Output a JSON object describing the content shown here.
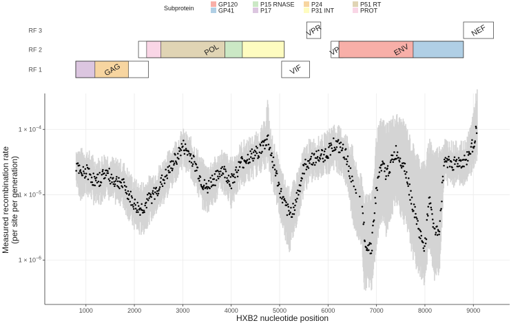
{
  "legend": {
    "title": "Subprotein",
    "items": [
      {
        "label": "GP120",
        "color": "#F8AFA8"
      },
      {
        "label": "GP41",
        "color": "#B0CFE5"
      },
      {
        "label": "P15 RNASE",
        "color": "#CBE8C5"
      },
      {
        "label": "P17",
        "color": "#DCC6E0"
      },
      {
        "label": "P24",
        "color": "#F7D5A0"
      },
      {
        "label": "P31 INT",
        "color": "#FEFCC0"
      },
      {
        "label": "P51 RT",
        "color": "#E0D4B4"
      },
      {
        "label": "PROT",
        "color": "#F9D6E6"
      }
    ]
  },
  "chart_data": [
    {
      "type": "gene-map",
      "rows": [
        "RF 3",
        "RF 2",
        "RF 1"
      ],
      "genes": [
        {
          "label": "GAG",
          "frame": "RF 1",
          "start": 790,
          "end": 2292,
          "subproteins": [
            {
              "name": "P17",
              "start": 790,
              "end": 1186,
              "color": "#DCC6E0"
            },
            {
              "name": "P24",
              "start": 1186,
              "end": 1879,
              "color": "#F7D5A0"
            }
          ]
        },
        {
          "label": "POL",
          "frame": "RF 2",
          "start": 2085,
          "end": 5096,
          "subproteins": [
            {
              "name": "PROT",
              "start": 2253,
              "end": 2550,
              "color": "#F9D6E6"
            },
            {
              "name": "P51 RT",
              "start": 2550,
              "end": 3870,
              "color": "#E0D4B4"
            },
            {
              "name": "P15 RNASE",
              "start": 3870,
              "end": 4230,
              "color": "#CBE8C5"
            },
            {
              "name": "P31 INT",
              "start": 4230,
              "end": 5096,
              "color": "#FEFCC0"
            }
          ]
        },
        {
          "label": "VIF",
          "frame": "RF 1",
          "start": 5041,
          "end": 5619,
          "subproteins": []
        },
        {
          "label": "VPR",
          "frame": "RF 3",
          "start": 5559,
          "end": 5850,
          "subproteins": []
        },
        {
          "label": "VPU",
          "frame": "RF 2",
          "start": 6062,
          "end": 6310,
          "subproteins": []
        },
        {
          "label": "ENV",
          "frame": "RF 2",
          "start": 6225,
          "end": 8795,
          "subproteins": [
            {
              "name": "GP120",
              "start": 6225,
              "end": 7758,
              "color": "#F8AFA8"
            },
            {
              "name": "GP41",
              "start": 7758,
              "end": 8795,
              "color": "#B0CFE5"
            }
          ]
        },
        {
          "label": "NEF",
          "frame": "RF 3",
          "start": 8797,
          "end": 9417,
          "subproteins": []
        }
      ]
    },
    {
      "type": "scatter",
      "xlabel": "HXB2 nucleotide position",
      "ylabel_lines": [
        "Measured recombination rate",
        "(per site per generation)"
      ],
      "xlim": [
        150,
        9750
      ],
      "xticks": [
        1000,
        2000,
        3000,
        4000,
        5000,
        6000,
        7000,
        8000,
        9000
      ],
      "ylim_log10": [
        -6.68,
        -3.45
      ],
      "yticks": [
        {
          "value": 1e-06,
          "mantissa": "1",
          "exponent": "−6"
        },
        {
          "value": 1e-05,
          "mantissa": "1",
          "exponent": "−5"
        },
        {
          "value": 0.0001,
          "mantissa": "1",
          "exponent": "−4"
        }
      ],
      "grid": true,
      "point_color": "#000000",
      "band_color": "#d4d4d4",
      "trend": [
        [
          800,
          2.8e-05
        ],
        [
          900,
          2e-05
        ],
        [
          1000,
          2.3e-05
        ],
        [
          1100,
          2e-05
        ],
        [
          1200,
          1.5e-05
        ],
        [
          1300,
          1.8e-05
        ],
        [
          1400,
          2.2e-05
        ],
        [
          1500,
          1.9e-05
        ],
        [
          1600,
          1.6e-05
        ],
        [
          1700,
          1.6e-05
        ],
        [
          1800,
          1.3e-05
        ],
        [
          1900,
          9.5e-06
        ],
        [
          2000,
          7e-06
        ],
        [
          2100,
          6e-06
        ],
        [
          2200,
          6.5e-06
        ],
        [
          2300,
          8.5e-06
        ],
        [
          2400,
          1e-05
        ],
        [
          2500,
          1.3e-05
        ],
        [
          2600,
          1.7e-05
        ],
        [
          2700,
          2.2e-05
        ],
        [
          2800,
          3e-05
        ],
        [
          2900,
          4e-05
        ],
        [
          3000,
          5.5e-05
        ],
        [
          3100,
          4.5e-05
        ],
        [
          3200,
          3.5e-05
        ],
        [
          3300,
          2.4e-05
        ],
        [
          3400,
          1.5e-05
        ],
        [
          3500,
          1.2e-05
        ],
        [
          3600,
          1.7e-05
        ],
        [
          3700,
          1.8e-05
        ],
        [
          3800,
          2.5e-05
        ],
        [
          3900,
          2e-05
        ],
        [
          4000,
          1.6e-05
        ],
        [
          4100,
          2.2e-05
        ],
        [
          4200,
          3e-05
        ],
        [
          4300,
          3.5e-05
        ],
        [
          4400,
          3.8e-05
        ],
        [
          4500,
          4.2e-05
        ],
        [
          4600,
          5e-05
        ],
        [
          4700,
          6e-05
        ],
        [
          4750,
          7.5e-05
        ],
        [
          4800,
          5e-05
        ],
        [
          4900,
          2.5e-05
        ],
        [
          5000,
          1.2e-05
        ],
        [
          5100,
          7e-06
        ],
        [
          5200,
          5e-06
        ],
        [
          5300,
          6.5e-06
        ],
        [
          5400,
          1.2e-05
        ],
        [
          5500,
          2.5e-05
        ],
        [
          5600,
          3.3e-05
        ],
        [
          5700,
          3.6e-05
        ],
        [
          5800,
          3.8e-05
        ],
        [
          5900,
          4e-05
        ],
        [
          6000,
          4.5e-05
        ],
        [
          6100,
          6e-05
        ],
        [
          6200,
          5.5e-05
        ],
        [
          6300,
          4.8e-05
        ],
        [
          6400,
          3.5e-05
        ],
        [
          6500,
          1.5e-05
        ],
        [
          6600,
          8e-06
        ],
        [
          6700,
          7e-06
        ],
        [
          6750,
          2.5e-06
        ],
        [
          6800,
          1.6e-06
        ],
        [
          6900,
          1.6e-06
        ],
        [
          6950,
          5e-06
        ],
        [
          7000,
          1.2e-05
        ],
        [
          7100,
          3e-05
        ],
        [
          7200,
          2e-05
        ],
        [
          7300,
          3e-05
        ],
        [
          7400,
          4.5e-05
        ],
        [
          7500,
          3.5e-05
        ],
        [
          7600,
          2.5e-05
        ],
        [
          7700,
          1e-05
        ],
        [
          7800,
          5e-06
        ],
        [
          7900,
          2.4e-06
        ],
        [
          8000,
          1.6e-06
        ],
        [
          8100,
          1e-05
        ],
        [
          8200,
          2.5e-06
        ],
        [
          8300,
          3e-06
        ],
        [
          8400,
          3.5e-05
        ],
        [
          8500,
          3.2e-05
        ],
        [
          8600,
          3e-05
        ],
        [
          8700,
          3.2e-05
        ],
        [
          8800,
          3.1e-05
        ],
        [
          8900,
          4e-05
        ],
        [
          9000,
          6e-05
        ],
        [
          9080,
          0.00012
        ]
      ],
      "band": [
        [
          800,
          4.5e-05,
          1.6e-05
        ],
        [
          900,
          4e-05,
          1e-05
        ],
        [
          1000,
          4e-05,
          1.2e-05
        ],
        [
          1100,
          3.5e-05,
          1.1e-05
        ],
        [
          1200,
          2.8e-05,
          8e-06
        ],
        [
          1300,
          3e-05,
          9e-06
        ],
        [
          1400,
          3.6e-05,
          1.2e-05
        ],
        [
          1500,
          3.2e-05,
          1e-05
        ],
        [
          1600,
          2.8e-05,
          9e-06
        ],
        [
          1700,
          2.8e-05,
          9e-06
        ],
        [
          1800,
          2.4e-05,
          7e-06
        ],
        [
          1900,
          1.8e-05,
          5e-06
        ],
        [
          2000,
          1.4e-05,
          3.5e-06
        ],
        [
          2100,
          1.2e-05,
          3e-06
        ],
        [
          2200,
          1.3e-05,
          3.2e-06
        ],
        [
          2300,
          1.5e-05,
          4.5e-06
        ],
        [
          2400,
          1.8e-05,
          5.5e-06
        ],
        [
          2500,
          2.2e-05,
          7e-06
        ],
        [
          2600,
          2.8e-05,
          9e-06
        ],
        [
          2700,
          3.6e-05,
          1.2e-05
        ],
        [
          2800,
          4.8e-05,
          1.7e-05
        ],
        [
          2900,
          6.2e-05,
          2.4e-05
        ],
        [
          3000,
          8e-05,
          3.4e-05
        ],
        [
          3100,
          6.8e-05,
          2.7e-05
        ],
        [
          3200,
          5.5e-05,
          2e-05
        ],
        [
          3300,
          4e-05,
          1.3e-05
        ],
        [
          3400,
          2.8e-05,
          8e-06
        ],
        [
          3500,
          2.2e-05,
          6.5e-06
        ],
        [
          3600,
          2.8e-05,
          9e-06
        ],
        [
          3700,
          3e-05,
          1e-05
        ],
        [
          3800,
          4e-05,
          1.4e-05
        ],
        [
          3900,
          3.4e-05,
          1.1e-05
        ],
        [
          4000,
          2.8e-05,
          8e-06
        ],
        [
          4100,
          3.6e-05,
          1.2e-05
        ],
        [
          4200,
          5e-05,
          1.6e-05
        ],
        [
          4300,
          5.6e-05,
          1.9e-05
        ],
        [
          4400,
          6e-05,
          2.1e-05
        ],
        [
          4500,
          6.8e-05,
          2.4e-05
        ],
        [
          4600,
          8e-05,
          2.8e-05
        ],
        [
          4700,
          0.00011,
          3.2e-05
        ],
        [
          4750,
          0.00025,
          3.5e-05
        ],
        [
          4800,
          9e-05,
          2.4e-05
        ],
        [
          4900,
          4.5e-05,
          1.2e-05
        ],
        [
          5000,
          2.4e-05,
          5.5e-06
        ],
        [
          5100,
          1.4e-05,
          3e-06
        ],
        [
          5200,
          1e-05,
          1.6e-06
        ],
        [
          5300,
          1.3e-05,
          3e-06
        ],
        [
          5400,
          2.2e-05,
          6e-06
        ],
        [
          5500,
          4.2e-05,
          1.3e-05
        ],
        [
          5600,
          5.4e-05,
          1.8e-05
        ],
        [
          5700,
          5.8e-05,
          2e-05
        ],
        [
          5800,
          6e-05,
          2.2e-05
        ],
        [
          5900,
          6.5e-05,
          2.4e-05
        ],
        [
          6000,
          7.5e-05,
          2.6e-05
        ],
        [
          6100,
          0.0001,
          3.2e-05
        ],
        [
          6200,
          9e-05,
          2.8e-05
        ],
        [
          6300,
          8e-05,
          2.4e-05
        ],
        [
          6400,
          6.5e-05,
          1.4e-05
        ],
        [
          6500,
          4.5e-05,
          5e-06
        ],
        [
          6600,
          2e-05,
          2.5e-06
        ],
        [
          6700,
          1.5e-05,
          2e-06
        ],
        [
          6750,
          8e-06,
          4e-07
        ],
        [
          6800,
          1e-05,
          5e-07
        ],
        [
          6900,
          8e-06,
          4.5e-07
        ],
        [
          6950,
          2e-05,
          1e-06
        ],
        [
          7000,
          7e-05,
          2e-06
        ],
        [
          7100,
          0.00012,
          5e-06
        ],
        [
          7200,
          0.0001,
          3e-06
        ],
        [
          7300,
          0.00012,
          5e-06
        ],
        [
          7400,
          0.00014,
          1e-05
        ],
        [
          7500,
          0.00012,
          6e-06
        ],
        [
          7600,
          0.0001,
          4e-06
        ],
        [
          7700,
          6e-05,
          2e-06
        ],
        [
          7800,
          4e-05,
          1e-06
        ],
        [
          7900,
          3e-05,
          7e-07
        ],
        [
          8000,
          2.5e-05,
          5e-07
        ],
        [
          8100,
          6e-05,
          2e-06
        ],
        [
          8200,
          4e-05,
          6e-07
        ],
        [
          8300,
          4.5e-05,
          8e-07
        ],
        [
          8400,
          6e-05,
          1.8e-05
        ],
        [
          8500,
          5.5e-05,
          1.8e-05
        ],
        [
          8600,
          5e-05,
          1.7e-05
        ],
        [
          8700,
          5.2e-05,
          1.8e-05
        ],
        [
          8800,
          5e-05,
          1.8e-05
        ],
        [
          8900,
          7e-05,
          2.2e-05
        ],
        [
          9000,
          0.00016,
          3e-05
        ],
        [
          9080,
          0.00035,
          4e-05
        ]
      ]
    }
  ]
}
